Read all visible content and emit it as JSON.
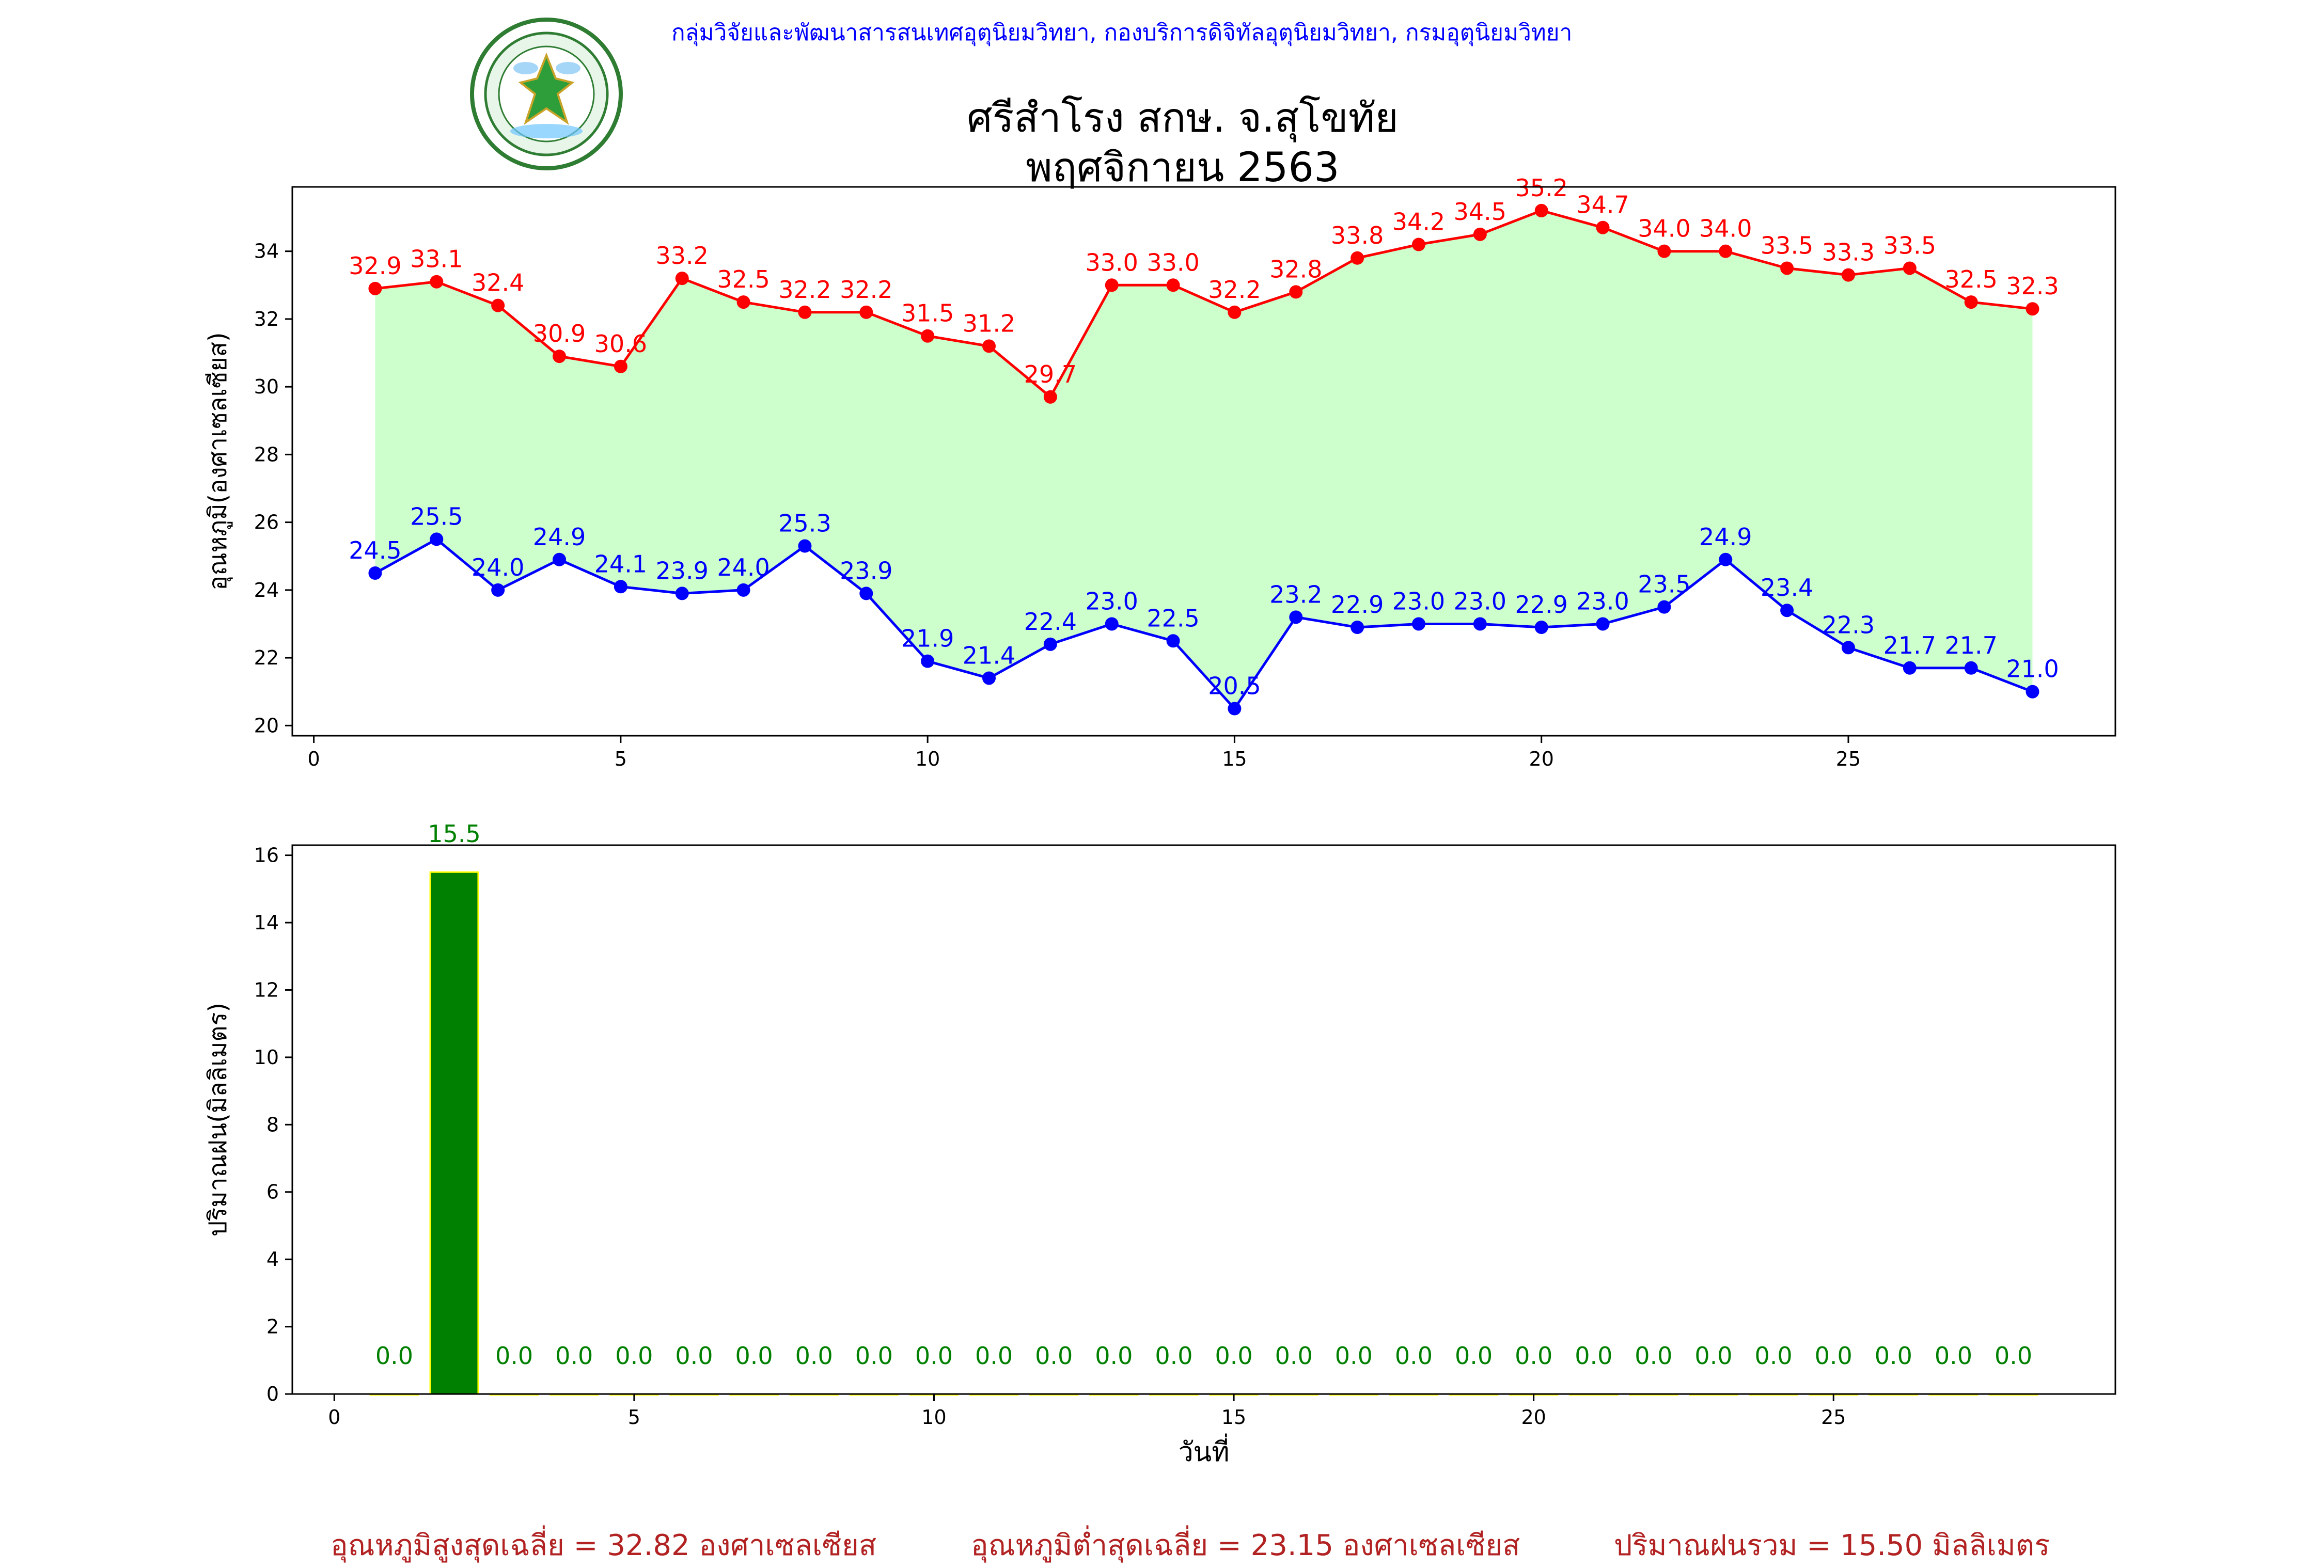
{
  "header": {
    "credit": "กลุ่มวิจัยและพัฒนาสารสนเทศอุตุนิยมวิทยา, กองบริการดิจิทัลอุตุนิยมวิทยา, กรมอุตุนิยมวิทยา",
    "logo_text_top": "กรมอุตุนิยมวิทยา",
    "logo_text_bottom": "METEOROLOGICAL DEPARTMENT"
  },
  "title": {
    "line1": "ศรีสำโรง สกษ. จ.สุโขทัย",
    "line2": "พฤศจิกายน 2563"
  },
  "colors": {
    "max_line": "#ff0000",
    "min_line": "#0000ff",
    "fill": "#ccffcc",
    "bar_fill": "#008000",
    "bar_edge": "#ffff00",
    "bar_label": "#008000",
    "summary": "#b22222"
  },
  "chart_data": [
    {
      "type": "line",
      "title": "",
      "xlabel": "",
      "ylabel": "อุณหภูมิ(องศาเซลเซียส)",
      "xlim": [
        -0.35,
        29.35
      ],
      "ylim": [
        19.7,
        35.9
      ],
      "xticks": [
        0,
        5,
        10,
        15,
        20,
        25
      ],
      "yticks": [
        20,
        22,
        24,
        26,
        28,
        30,
        32,
        34
      ],
      "grid": false,
      "fill_between": true,
      "x": [
        1,
        2,
        3,
        4,
        5,
        6,
        7,
        8,
        9,
        10,
        11,
        12,
        13,
        14,
        15,
        16,
        17,
        18,
        19,
        20,
        21,
        22,
        23,
        24,
        25,
        26,
        27,
        28
      ],
      "series": [
        {
          "values": [
            32.9,
            33.1,
            32.4,
            30.9,
            30.6,
            33.2,
            32.5,
            32.2,
            32.2,
            31.5,
            31.2,
            29.7,
            33.0,
            33.0,
            32.2,
            32.8,
            33.8,
            34.2,
            34.5,
            35.2,
            34.7,
            34.0,
            34.0,
            33.5,
            33.3,
            33.5,
            32.5,
            32.3
          ],
          "labels": [
            "32.9",
            "33.1",
            "32.4",
            "30.9",
            "30.6",
            "33.2",
            "32.5",
            "32.2",
            "32.2",
            "31.5",
            "31.2",
            "29.7",
            "33.0",
            "33.0",
            "32.2",
            "32.8",
            "33.8",
            "34.2",
            "34.5",
            "35.2",
            "34.7",
            "34.0",
            "34.0",
            "33.5",
            "33.3",
            "33.5",
            "32.5",
            "32.3"
          ]
        },
        {
          "values": [
            24.5,
            25.5,
            24.0,
            24.9,
            24.1,
            23.9,
            24.0,
            25.3,
            23.9,
            21.9,
            21.4,
            22.4,
            23.0,
            22.5,
            20.5,
            23.2,
            22.9,
            23.0,
            23.0,
            22.9,
            23.0,
            23.5,
            24.9,
            23.4,
            22.3,
            21.7,
            21.7,
            21.0
          ],
          "labels": [
            "24.5",
            "25.5",
            "24.0",
            "24.9",
            "24.1",
            "23.9",
            "24.0",
            "25.3",
            "23.9",
            "21.9",
            "21.4",
            "22.4",
            "23.0",
            "22.5",
            "20.5",
            "23.2",
            "22.9",
            "23.0",
            "23.0",
            "22.9",
            "23.0",
            "23.5",
            "24.9",
            "23.4",
            "22.3",
            "21.7",
            "21.7",
            "21.0"
          ]
        }
      ]
    },
    {
      "type": "bar",
      "title": "",
      "xlabel": "วันที่",
      "ylabel": "ปริมาณฝน(มิลลิเมตร)",
      "xlim": [
        -0.7,
        29.7
      ],
      "ylim": [
        0,
        16.3
      ],
      "xticks": [
        0,
        5,
        10,
        15,
        20,
        25
      ],
      "yticks": [
        0,
        2,
        4,
        6,
        8,
        10,
        12,
        14,
        16
      ],
      "grid": false,
      "x": [
        1,
        2,
        3,
        4,
        5,
        6,
        7,
        8,
        9,
        10,
        11,
        12,
        13,
        14,
        15,
        16,
        17,
        18,
        19,
        20,
        21,
        22,
        23,
        24,
        25,
        26,
        27,
        28
      ],
      "values": [
        0.0,
        15.5,
        0.0,
        0.0,
        0.0,
        0.0,
        0.0,
        0.0,
        0.0,
        0.0,
        0.0,
        0.0,
        0.0,
        0.0,
        0.0,
        0.0,
        0.0,
        0.0,
        0.0,
        0.0,
        0.0,
        0.0,
        0.0,
        0.0,
        0.0,
        0.0,
        0.0,
        0.0
      ],
      "labels": [
        "0.0",
        "15.5",
        "0.0",
        "0.0",
        "0.0",
        "0.0",
        "0.0",
        "0.0",
        "0.0",
        "0.0",
        "0.0",
        "0.0",
        "0.0",
        "0.0",
        "0.0",
        "0.0",
        "0.0",
        "0.0",
        "0.0",
        "0.0",
        "0.0",
        "0.0",
        "0.0",
        "0.0",
        "0.0",
        "0.0",
        "0.0",
        "0.0"
      ]
    }
  ],
  "summary": {
    "avg_max": "อุณหภูมิสูงสุดเฉลี่ย = 32.82 องศาเซลเซียส",
    "avg_min": "อุณหภูมิต่ำสุดเฉลี่ย = 23.15 องศาเซลเซียส",
    "total_rain": "ปริมาณฝนรวม = 15.50 มิลลิเมตร"
  }
}
